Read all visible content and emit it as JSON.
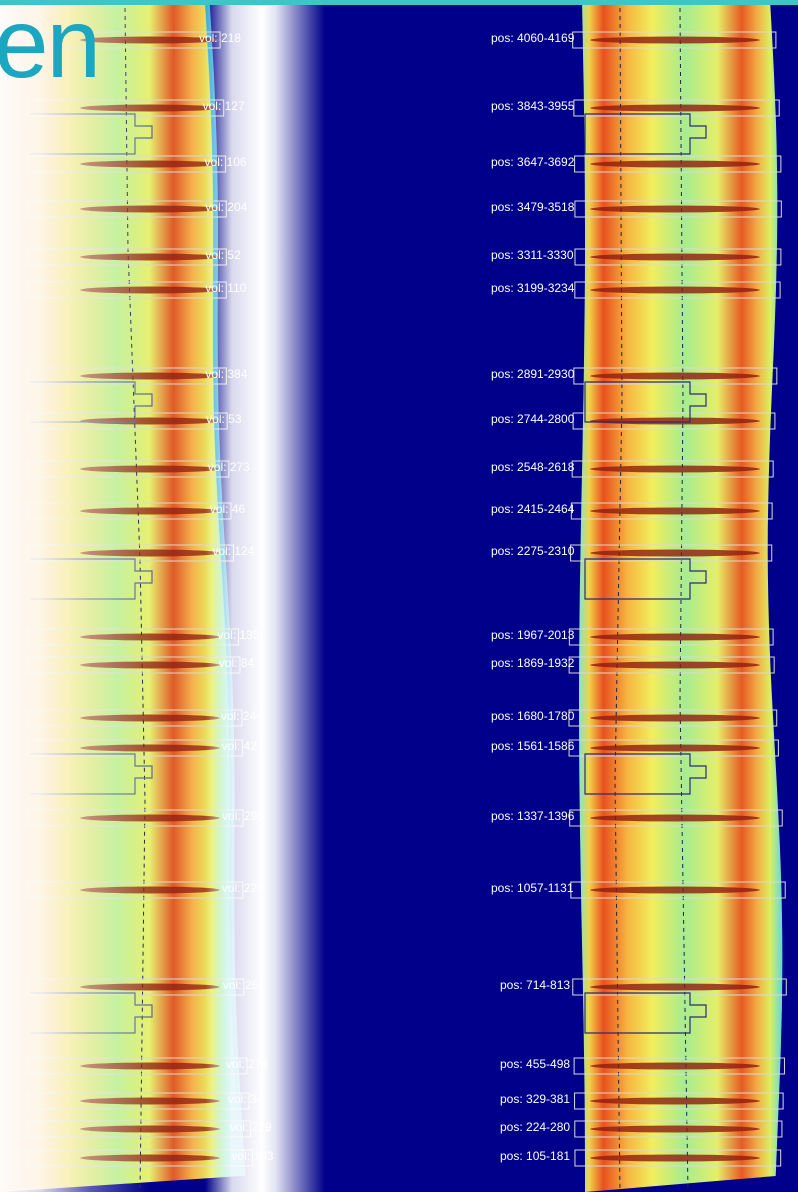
{
  "title_fragment": "en",
  "colors": {
    "background": "#00008a",
    "stripe": "#3ec6c6",
    "title": "#1aa7bf",
    "box_outline": "#d9d9d9",
    "dashed_line": "#222244"
  },
  "regions": [
    {
      "vol": "vol: 218",
      "pos": "pos: 4060-4169"
    },
    {
      "vol": "vol: 127",
      "pos": "pos: 3843-3955"
    },
    {
      "vol": "vol: 106",
      "pos": "pos: 3647-3692"
    },
    {
      "vol": "vol: 204",
      "pos": "pos: 3479-3518"
    },
    {
      "vol": "vol: 52",
      "pos": "pos: 3311-3330"
    },
    {
      "vol": "vol: 110",
      "pos": "pos: 3199-3234"
    },
    {
      "vol": "vol: 384",
      "pos": "pos: 2891-2930"
    },
    {
      "vol": "vol: 53",
      "pos": "pos: 2744-2800"
    },
    {
      "vol": "vol: 273",
      "pos": "pos: 2548-2618"
    },
    {
      "vol": "vol: 46",
      "pos": "pos: 2415-2464"
    },
    {
      "vol": "vol: 124",
      "pos": "pos: 2275-2310"
    },
    {
      "vol": "vol: 135",
      "pos": "pos: 1967-2013"
    },
    {
      "vol": "vol: 84",
      "pos": "pos: 1869-1932"
    },
    {
      "vol": "vol: 244",
      "pos": "pos: 1680-1780"
    },
    {
      "vol": "vol: 42",
      "pos": "pos: 1561-1586"
    },
    {
      "vol": "vol: 295",
      "pos": "pos: 1337-1396"
    },
    {
      "vol": "vol: 226",
      "pos": "pos: 1057-1131"
    },
    {
      "vol": "vol: 254",
      "pos": "pos: 714-813"
    },
    {
      "vol": "vol: 274",
      "pos": "pos: 455-498"
    },
    {
      "vol": "vol: 34",
      "pos": "pos: 329-381"
    },
    {
      "vol": "vol: 229",
      "pos": "pos: 224-280"
    },
    {
      "vol": "vol: 103",
      "pos": "pos: 105-181"
    }
  ]
}
